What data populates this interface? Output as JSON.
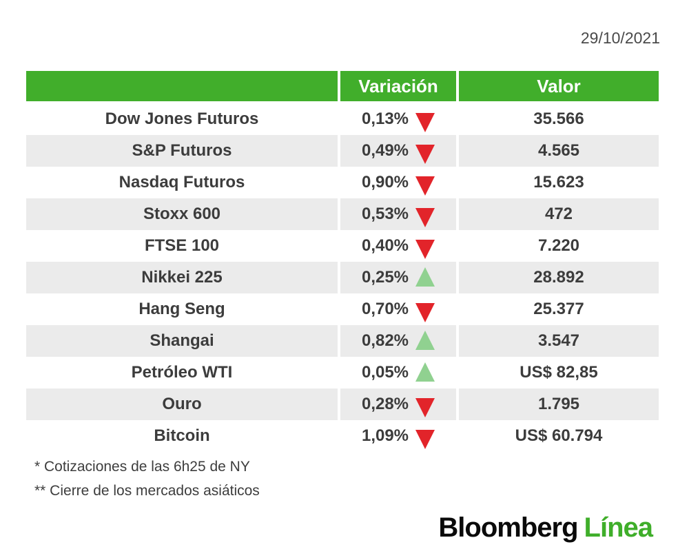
{
  "page": {
    "date": "29/10/2021"
  },
  "table": {
    "headers": {
      "name": "",
      "variation": "Variación",
      "value": "Valor"
    },
    "rows": [
      {
        "name": "Dow Jones Futuros",
        "variation": "0,13%",
        "direction": "down",
        "value": "35.566"
      },
      {
        "name": "S&P Futuros",
        "variation": "0,49%",
        "direction": "down",
        "value": "4.565"
      },
      {
        "name": "Nasdaq Futuros",
        "variation": "0,90%",
        "direction": "down",
        "value": "15.623"
      },
      {
        "name": "Stoxx 600",
        "variation": "0,53%",
        "direction": "down",
        "value": "472"
      },
      {
        "name": "FTSE 100",
        "variation": "0,40%",
        "direction": "down",
        "value": "7.220"
      },
      {
        "name": "Nikkei 225",
        "variation": "0,25%",
        "direction": "up",
        "value": "28.892"
      },
      {
        "name": "Hang Seng",
        "variation": "0,70%",
        "direction": "down",
        "value": "25.377"
      },
      {
        "name": "Shangai",
        "variation": "0,82%",
        "direction": "up",
        "value": "3.547"
      },
      {
        "name": "Petróleo WTI",
        "variation": "0,05%",
        "direction": "up",
        "value": "US$ 82,85"
      },
      {
        "name": "Ouro",
        "variation": "0,28%",
        "direction": "down",
        "value": "1.795"
      },
      {
        "name": "Bitcoin",
        "variation": "1,09%",
        "direction": "down",
        "value": "US$ 60.794"
      }
    ]
  },
  "footnotes": [
    "* Cotizaciones de las 6h25 de NY",
    "** Cierre de los mercados asiáticos"
  ],
  "logo": {
    "black": "Bloomberg",
    "green": "Línea"
  },
  "colors": {
    "header_green": "#41ae2b",
    "row_alt": "#ebebeb",
    "down_red": "#e2242a",
    "up_green": "#90d190",
    "logo_green": "#3fae2a",
    "text_dark": "#3c3c3c"
  }
}
